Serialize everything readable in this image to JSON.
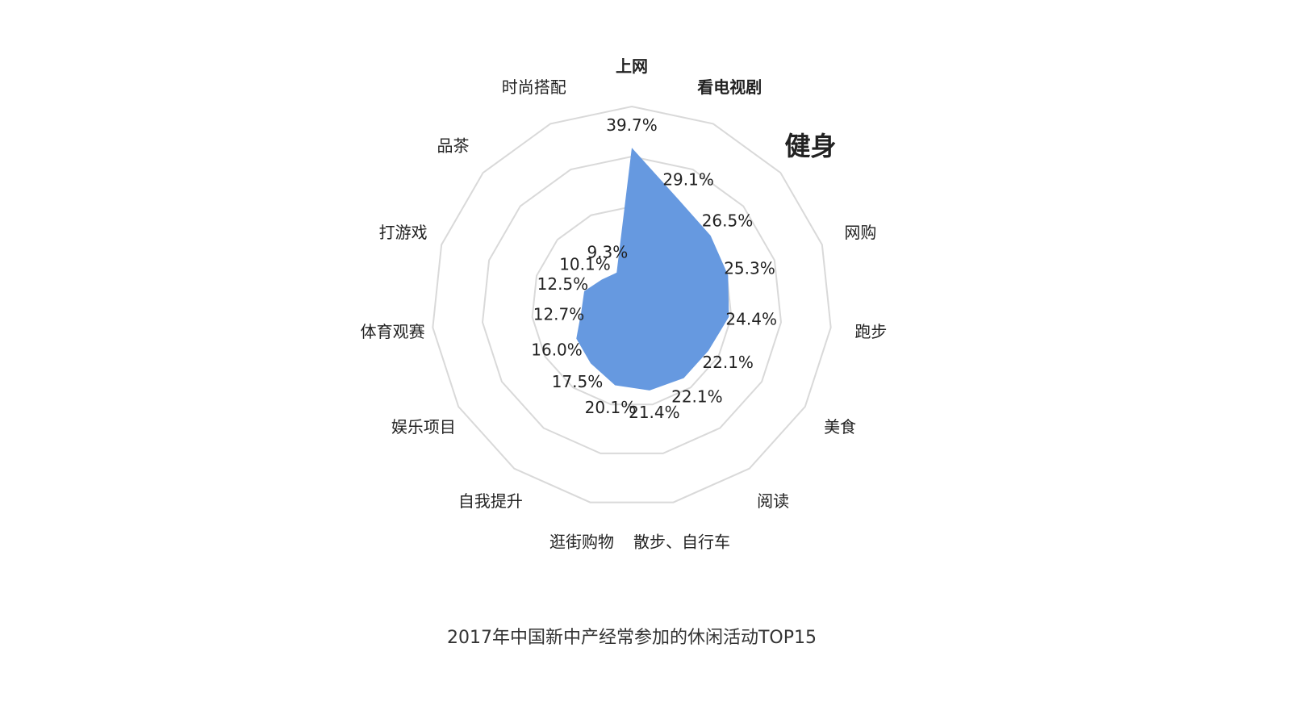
{
  "chart_data": {
    "type": "radar",
    "title": "2017年中国新中产经常参加的休闲活动TOP15",
    "categories": [
      "上网",
      "看电视剧",
      "健身",
      "网购",
      "跑步",
      "美食",
      "阅读",
      "散步、自行车",
      "逛街购物",
      "自我提升",
      "娱乐项目",
      "体育观赛",
      "打游戏",
      "品茶",
      "时尚搭配"
    ],
    "values": [
      39.7,
      29.1,
      26.5,
      25.3,
      24.4,
      22.1,
      22.1,
      21.4,
      20.1,
      17.5,
      16.0,
      12.7,
      12.5,
      10.1,
      9.3
    ],
    "value_labels": [
      "39.7%",
      "29.1%",
      "26.5%",
      "25.3%",
      "24.4%",
      "22.1%",
      "22.1%",
      "21.4%",
      "20.1%",
      "17.5%",
      "16.0%",
      "12.7%",
      "12.5%",
      "10.1%",
      "9.3%"
    ],
    "unit": "%",
    "grid": true,
    "colors": {
      "fill": "#6699e0",
      "grid": "#d9d9d9",
      "text": "#222222"
    }
  }
}
